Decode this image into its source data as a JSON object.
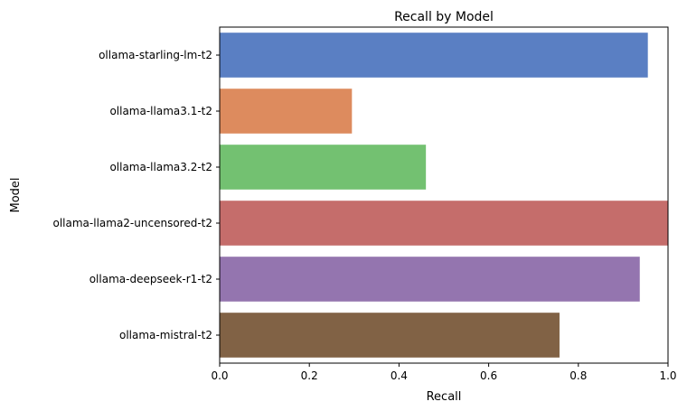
{
  "chart_data": {
    "type": "bar",
    "orientation": "horizontal",
    "title": "Recall by Model",
    "xlabel": "Recall",
    "ylabel": "Model",
    "xlim": [
      0,
      1.0
    ],
    "xticks": [
      "0.0",
      "0.2",
      "0.4",
      "0.6",
      "0.8",
      "1.0"
    ],
    "grid": false,
    "categories": [
      "ollama-starling-lm-t2",
      "ollama-llama3.1-t2",
      "ollama-llama3.2-t2",
      "ollama-llama2-uncensored-t2",
      "ollama-deepseek-r1-t2",
      "ollama-mistral-t2"
    ],
    "values": [
      0.955,
      0.295,
      0.46,
      1.0,
      0.937,
      0.758
    ],
    "colors": [
      "#5a7fc3",
      "#dd8b5e",
      "#73c171",
      "#c56d6b",
      "#9475af",
      "#816245"
    ]
  }
}
